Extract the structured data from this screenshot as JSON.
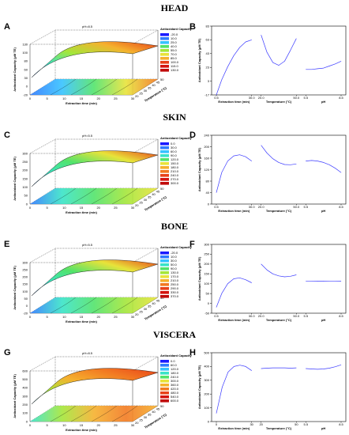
{
  "rows": [
    {
      "title": "HEAD",
      "surface_letter": "A",
      "trace_letter": "B",
      "surface": {
        "note": "pH=8.5",
        "zlabel": "Antioxidant Capacity (μM TE)",
        "xlabel": "Extraction time (min)",
        "ylabel": "Temperature (°C)",
        "zticks": [
          "130",
          "100",
          "80",
          "60",
          "30",
          "0",
          "-20"
        ],
        "xticks": [
          "0",
          "5",
          "10",
          "15",
          "20",
          "25",
          "30"
        ],
        "yticks": [
          "20",
          "25",
          "30",
          "35",
          "40",
          "45",
          "50"
        ],
        "legend_title": "Antioxidant Capacity",
        "legend": [
          "-20.0",
          "10.0",
          "25.0",
          "40.0",
          "55.0",
          "70.0",
          "85.0",
          "100.0",
          "115.0",
          "130.0"
        ]
      },
      "trace": {
        "ylabel": "Antioxidant Capacity (μM TE)",
        "yticks": [
          "83",
          "63",
          "43",
          "23",
          "3",
          "-17"
        ],
        "ylim": [
          -17,
          83
        ],
        "factors": [
          {
            "label": "Extraction time (min)",
            "ticks": [
              "0.5",
              "30.0"
            ],
            "x": [
              0.5,
              5,
              10,
              15,
              20,
              25,
              30
            ],
            "y": [
              -17,
              5,
              24,
              40,
              52,
              60,
              63
            ]
          },
          {
            "label": "Temperature (°C)",
            "ticks": [
              "20.0",
              "50.0"
            ],
            "x": [
              20,
              25,
              30,
              35,
              40,
              45,
              50
            ],
            "y": [
              70,
              45,
              30,
              26,
              32,
              48,
              65
            ]
          },
          {
            "label": "pH",
            "ticks": [
              "5.5",
              "8.5"
            ],
            "x": [
              5.5,
              6,
              6.5,
              7,
              7.5,
              8,
              8.5
            ],
            "y": [
              20,
              20,
              21,
              22,
              25,
              28,
              32
            ]
          }
        ]
      }
    },
    {
      "title": "SKIN",
      "surface_letter": "C",
      "trace_letter": "D",
      "surface": {
        "note": "pH=5.5",
        "zlabel": "Antioxidant Capacity (μM TE)",
        "xlabel": "Extraction time (min)",
        "ylabel": "Temperature (°C)",
        "zticks": [
          "300",
          "250",
          "200",
          "150",
          "100",
          "50",
          "0"
        ],
        "xticks": [
          "0",
          "5",
          "10",
          "15",
          "20",
          "25",
          "30"
        ],
        "yticks": [
          "20",
          "25",
          "30",
          "35",
          "40",
          "45",
          "50"
        ],
        "legend_title": "Antioxidant Capacity",
        "legend": [
          "0.0",
          "30.0",
          "60.0",
          "90.0",
          "120.0",
          "150.0",
          "180.0",
          "210.0",
          "240.0",
          "270.0",
          "300.0"
        ]
      },
      "trace": {
        "ylabel": "Antioxidant Capacity (μM TE)",
        "yticks": [
          "240",
          "200",
          "160",
          "120",
          "80",
          "40",
          "0"
        ],
        "ylim": [
          0,
          240
        ],
        "factors": [
          {
            "label": "Extraction time (min)",
            "ticks": [
              "0.5",
              "30.0"
            ],
            "x": [
              0.5,
              5,
              10,
              15,
              20,
              25,
              30
            ],
            "y": [
              40,
              110,
              150,
              168,
              172,
              165,
              150
            ]
          },
          {
            "label": "Temperature (°C)",
            "ticks": [
              "20.0",
              "50.0"
            ],
            "x": [
              20,
              25,
              30,
              35,
              40,
              45,
              50
            ],
            "y": [
              205,
              178,
              158,
              145,
              138,
              137,
              140
            ]
          },
          {
            "label": "pH",
            "ticks": [
              "5.5",
              "8.5"
            ],
            "x": [
              5.5,
              6,
              6.5,
              7,
              7.5,
              8,
              8.5
            ],
            "y": [
              150,
              152,
              150,
              145,
              137,
              125,
              110
            ]
          }
        ]
      }
    },
    {
      "title": "BONE",
      "surface_letter": "E",
      "trace_letter": "F",
      "surface": {
        "note": "pH=5.5",
        "zlabel": "Antioxidant Capacity (μM TE)",
        "xlabel": "Extraction time (min)",
        "ylabel": "Temperature (°C)",
        "zticks": [
          "300",
          "250",
          "200",
          "150",
          "100",
          "50",
          "0",
          "-20"
        ],
        "xticks": [
          "0",
          "5",
          "10",
          "15",
          "20",
          "25",
          "30"
        ],
        "yticks": [
          "20",
          "25",
          "30",
          "35",
          "40",
          "45",
          "50"
        ],
        "legend_title": "Antioxidant Capacity",
        "legend": [
          "-20.0",
          "10.0",
          "30.0",
          "50.0",
          "90.0",
          "130.0",
          "170.0",
          "210.0",
          "250.0",
          "290.0",
          "330.0",
          "370.0"
        ]
      },
      "trace": {
        "ylabel": "Antioxidant Capacity (μM TE)",
        "yticks": [
          "300",
          "250",
          "200",
          "150",
          "100",
          "50",
          "0",
          "-50"
        ],
        "ylim": [
          -50,
          300
        ],
        "factors": [
          {
            "label": "Extraction time (min)",
            "ticks": [
              "0.5",
              "30.0"
            ],
            "x": [
              0.5,
              5,
              10,
              15,
              20,
              25,
              30
            ],
            "y": [
              -20,
              50,
              100,
              125,
              130,
              120,
              105
            ]
          },
          {
            "label": "Temperature (°C)",
            "ticks": [
              "20.0",
              "50.0"
            ],
            "x": [
              20,
              25,
              30,
              35,
              40,
              45,
              50
            ],
            "y": [
              200,
              170,
              150,
              140,
              135,
              138,
              145
            ]
          },
          {
            "label": "pH",
            "ticks": [
              "5.5",
              "8.5"
            ],
            "x": [
              5.5,
              6,
              6.5,
              7,
              7.5,
              8,
              8.5
            ],
            "y": [
              112,
              112,
              113,
              113,
              112,
              112,
              113
            ]
          }
        ]
      }
    },
    {
      "title": "VISCERA",
      "surface_letter": "G",
      "trace_letter": "H",
      "surface": {
        "note": "pH=8.5",
        "zlabel": "Antioxidant Capacity (μM TE)",
        "xlabel": "Extraction time (min)",
        "ylabel": "Temperature (°C)",
        "zticks": [
          "600",
          "500",
          "400",
          "300",
          "200",
          "100",
          "0"
        ],
        "xticks": [
          "0",
          "5",
          "10",
          "15",
          "20",
          "25",
          "30"
        ],
        "yticks": [
          "20",
          "25",
          "30",
          "35",
          "40",
          "45",
          "50"
        ],
        "legend_title": "Antioxidant Capacity",
        "legend": [
          "0.0",
          "60.0",
          "120.0",
          "180.0",
          "240.0",
          "300.0",
          "360.0",
          "420.0",
          "480.0",
          "540.0",
          "600.0"
        ]
      },
      "trace": {
        "ylabel": "Antioxidant Capacity (μM TE)",
        "yticks": [
          "500",
          "400",
          "300",
          "200",
          "100",
          "0"
        ],
        "ylim": [
          0,
          500
        ],
        "factors": [
          {
            "label": "Extraction time (min)",
            "ticks": [
              "0",
              "30"
            ],
            "x": [
              0,
              5,
              10,
              15,
              20,
              25,
              30
            ],
            "y": [
              60,
              250,
              360,
              400,
              410,
              400,
              370
            ]
          },
          {
            "label": "Temperature (°C)",
            "ticks": [
              "20",
              "50"
            ],
            "x": [
              20,
              25,
              30,
              35,
              40,
              45,
              50
            ],
            "y": [
              385,
              388,
              390,
              390,
              390,
              388,
              390
            ]
          },
          {
            "label": "pH",
            "ticks": [
              "5.5",
              "8.5"
            ],
            "x": [
              5.5,
              6,
              6.5,
              7,
              7.5,
              8,
              8.5
            ],
            "y": [
              385,
              382,
              380,
              382,
              388,
              398,
              412
            ]
          }
        ]
      }
    }
  ],
  "chart_data": [
    {
      "type": "line",
      "panel": "B",
      "ylim": [
        -17,
        83
      ],
      "series": [
        {
          "x": [
            0.5,
            5,
            10,
            15,
            20,
            25,
            30
          ],
          "values": [
            -17,
            5,
            24,
            40,
            52,
            60,
            63
          ]
        },
        {
          "x": [
            20,
            25,
            30,
            35,
            40,
            45,
            50
          ],
          "values": [
            70,
            45,
            30,
            26,
            32,
            48,
            65
          ]
        },
        {
          "x": [
            5.5,
            6,
            6.5,
            7,
            7.5,
            8,
            8.5
          ],
          "values": [
            20,
            20,
            21,
            22,
            25,
            28,
            32
          ]
        }
      ]
    },
    {
      "type": "line",
      "panel": "D",
      "ylim": [
        0,
        240
      ],
      "series": [
        {
          "x": [
            0.5,
            5,
            10,
            15,
            20,
            25,
            30
          ],
          "values": [
            40,
            110,
            150,
            168,
            172,
            165,
            150
          ]
        },
        {
          "x": [
            20,
            25,
            30,
            35,
            40,
            45,
            50
          ],
          "values": [
            205,
            178,
            158,
            145,
            138,
            137,
            140
          ]
        },
        {
          "x": [
            5.5,
            6,
            6.5,
            7,
            7.5,
            8,
            8.5
          ],
          "values": [
            150,
            152,
            150,
            145,
            137,
            125,
            110
          ]
        }
      ]
    },
    {
      "type": "line",
      "panel": "F",
      "ylim": [
        -50,
        300
      ],
      "series": [
        {
          "x": [
            0.5,
            5,
            10,
            15,
            20,
            25,
            30
          ],
          "values": [
            -20,
            50,
            100,
            125,
            130,
            120,
            105
          ]
        },
        {
          "x": [
            20,
            25,
            30,
            35,
            40,
            45,
            50
          ],
          "values": [
            200,
            170,
            150,
            140,
            135,
            138,
            145
          ]
        },
        {
          "x": [
            5.5,
            6,
            6.5,
            7,
            7.5,
            8,
            8.5
          ],
          "values": [
            112,
            112,
            113,
            113,
            112,
            112,
            113
          ]
        }
      ]
    },
    {
      "type": "line",
      "panel": "H",
      "ylim": [
        0,
        500
      ],
      "series": [
        {
          "x": [
            0,
            5,
            10,
            15,
            20,
            25,
            30
          ],
          "values": [
            60,
            250,
            360,
            400,
            410,
            400,
            370
          ]
        },
        {
          "x": [
            20,
            25,
            30,
            35,
            40,
            45,
            50
          ],
          "values": [
            385,
            388,
            390,
            390,
            390,
            388,
            390
          ]
        },
        {
          "x": [
            5.5,
            6,
            6.5,
            7,
            7.5,
            8,
            8.5
          ],
          "values": [
            385,
            382,
            380,
            382,
            388,
            398,
            412
          ]
        }
      ]
    }
  ],
  "colors": {
    "ramp": [
      "#1a1aff",
      "#2f7bff",
      "#36c2ff",
      "#39e3c8",
      "#52e36b",
      "#a4e63a",
      "#e8e33a",
      "#f5b12e",
      "#f27a22",
      "#e8421a",
      "#d4140f",
      "#c00a0a"
    ],
    "trace_line": "#3a3aff"
  }
}
